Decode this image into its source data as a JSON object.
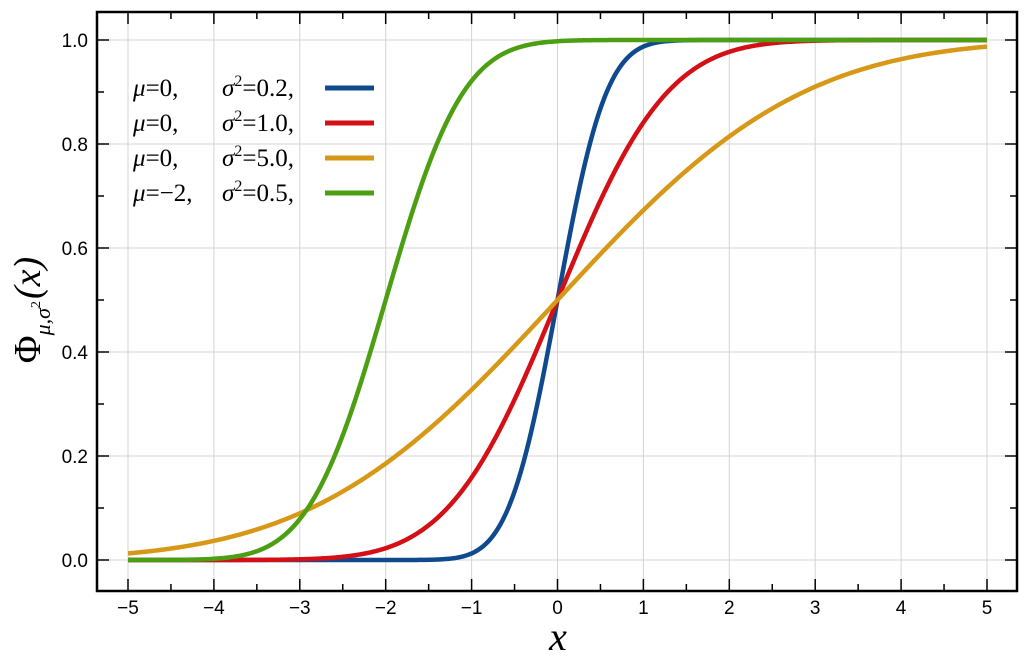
{
  "chart_data": {
    "type": "line",
    "title": "",
    "xlabel": "x",
    "ylabel": {
      "symbol": "Φ",
      "subscript": "μ,σ",
      "subscript_exponent": "2",
      "argument": "(x)"
    },
    "xlim": [
      -5,
      5
    ],
    "ylim": [
      0,
      1
    ],
    "xticks": [
      -5,
      -4,
      -3,
      -2,
      -1,
      0,
      1,
      2,
      3,
      4,
      5
    ],
    "xtick_labels": [
      "−5",
      "−4",
      "−3",
      "−2",
      "−1",
      "0",
      "1",
      "2",
      "3",
      "4",
      "5"
    ],
    "yticks": [
      0,
      0.2,
      0.4,
      0.6,
      0.8,
      1.0
    ],
    "ytick_labels": [
      "0.0",
      "0.2",
      "0.4",
      "0.6",
      "0.8",
      "1.0"
    ],
    "grid": true,
    "legend_position": "top-left",
    "function": "normal CDF",
    "series": [
      {
        "mu": 0,
        "variance": 0.2,
        "color": "#0f4a8f",
        "label": {
          "mu_sym": "μ",
          "mu_val": "=0,",
          "sigma_sym": "σ",
          "sigma_exp": "2",
          "sigma_val": "=0.2,"
        }
      },
      {
        "mu": 0,
        "variance": 1.0,
        "color": "#d40f16",
        "label": {
          "mu_sym": "μ",
          "mu_val": "=0,",
          "sigma_sym": "σ",
          "sigma_exp": "2",
          "sigma_val": "=1.0,"
        }
      },
      {
        "mu": 0,
        "variance": 5.0,
        "color": "#d69816",
        "label": {
          "mu_sym": "μ",
          "mu_val": "=0,",
          "sigma_sym": "σ",
          "sigma_exp": "2",
          "sigma_val": "=5.0,"
        }
      },
      {
        "mu": -2,
        "variance": 0.5,
        "color": "#4c9e12",
        "label": {
          "mu_sym": "μ",
          "mu_val": "=−2,",
          "sigma_sym": "σ",
          "sigma_exp": "2",
          "sigma_val": "=0.5,"
        }
      }
    ]
  }
}
